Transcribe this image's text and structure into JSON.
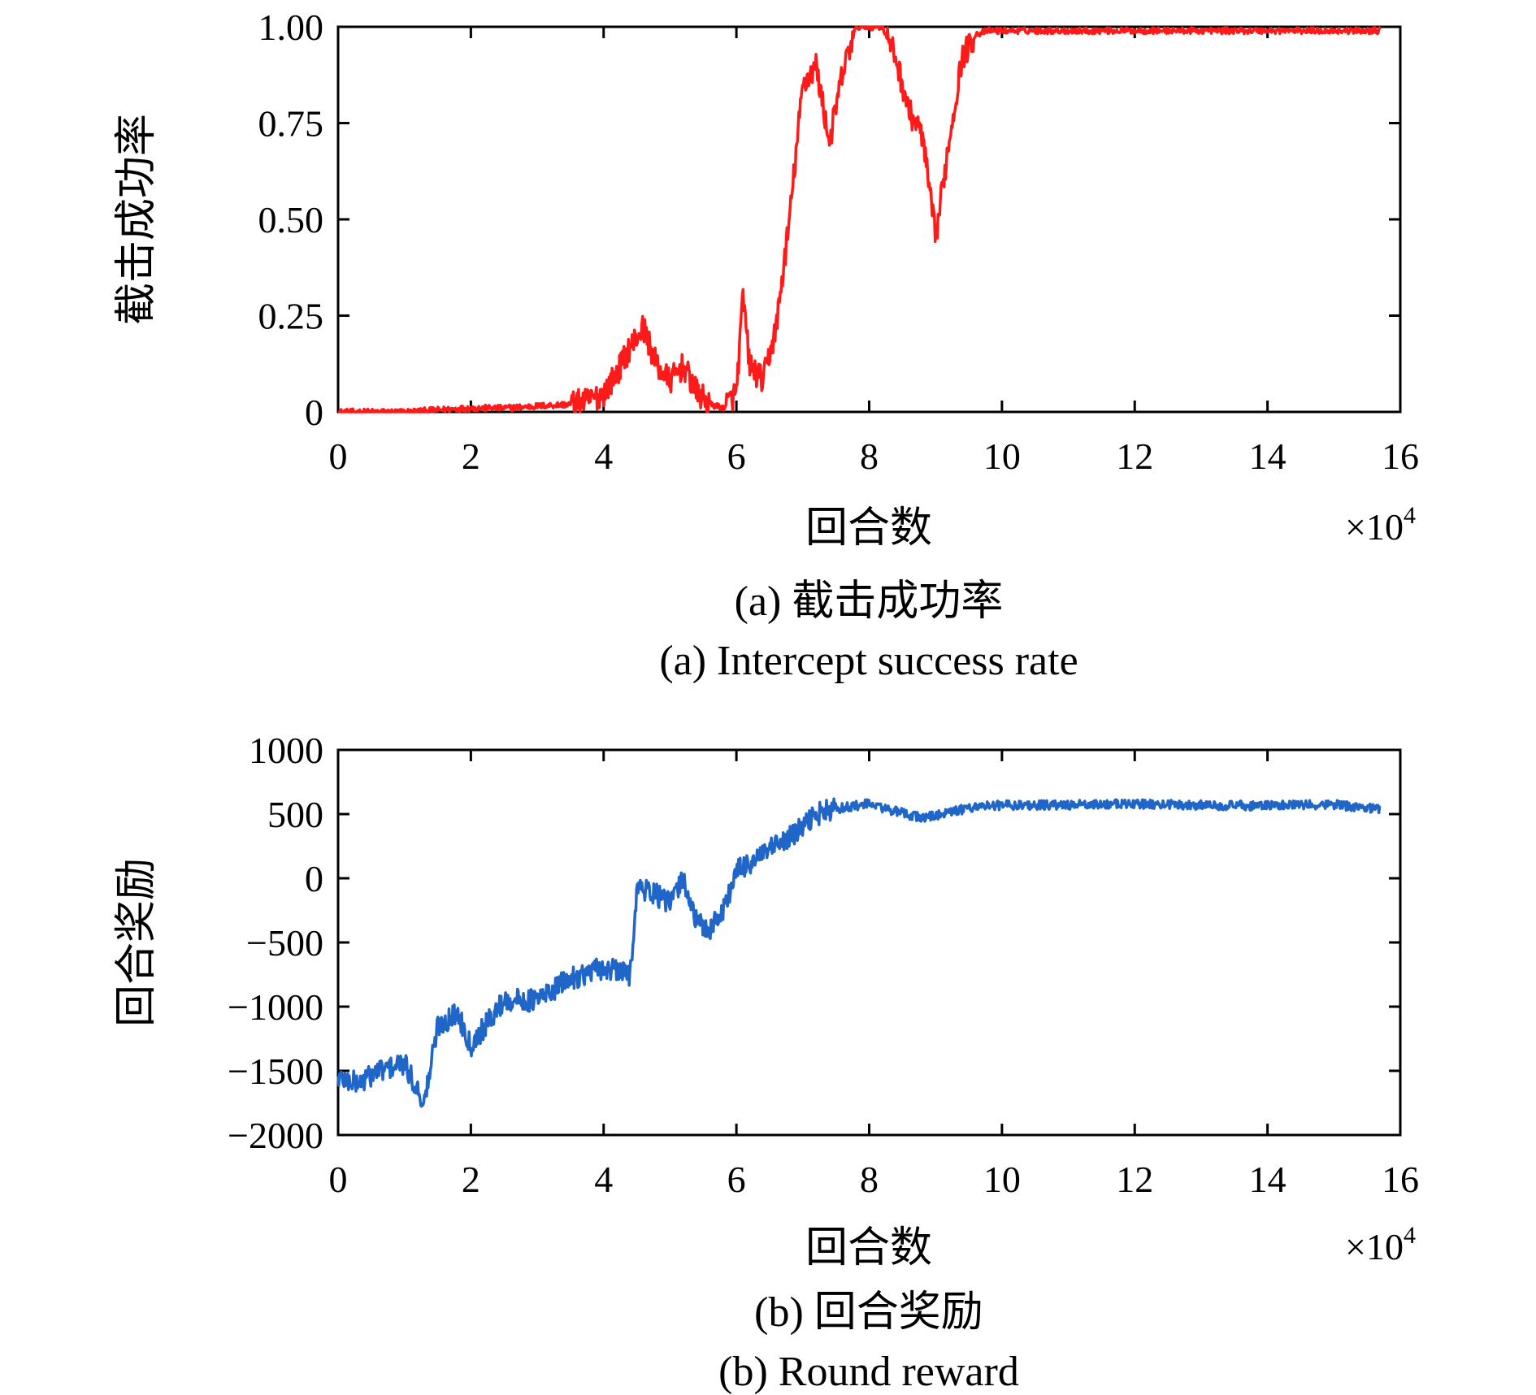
{
  "chart_data": [
    {
      "type": "line",
      "xlabel": "回合数",
      "ylabel": "截击成功率",
      "x_multiplier": "×10",
      "x_multiplier_exp": "4",
      "xlim": [
        0,
        16
      ],
      "ylim": [
        0,
        1
      ],
      "x_ticks": [
        0,
        2,
        4,
        6,
        8,
        10,
        12,
        14,
        16
      ],
      "x_tick_labels": [
        "0",
        "2",
        "4",
        "6",
        "8",
        "10",
        "12",
        "14",
        "16"
      ],
      "y_ticks": [
        0,
        0.25,
        0.5,
        0.75,
        1.0
      ],
      "y_tick_labels": [
        "0",
        "0.25",
        "0.50",
        "0.75",
        "1.00"
      ],
      "caption_cn": "(a) 截击成功率",
      "caption_en": "(a) Intercept success rate",
      "color": "#ff1a1a",
      "series": [
        {
          "x": [
            0,
            0.5,
            1.0,
            1.5,
            2.0,
            2.5,
            3.0,
            3.5,
            3.8,
            4.0,
            4.2,
            4.4,
            4.6,
            4.8,
            5.0,
            5.2,
            5.4,
            5.6,
            5.8,
            6.0,
            6.1,
            6.2,
            6.4,
            6.6,
            6.8,
            7.0,
            7.2,
            7.4,
            7.6,
            7.8,
            8.0,
            8.2,
            8.4,
            8.6,
            8.8,
            9.0,
            9.2,
            9.4,
            9.6,
            9.8,
            10.0,
            11,
            12,
            13,
            14,
            15,
            15.7
          ],
          "y": [
            0,
            0,
            0,
            0.005,
            0.01,
            0.01,
            0.015,
            0.02,
            0.03,
            0.05,
            0.1,
            0.17,
            0.22,
            0.12,
            0.08,
            0.12,
            0.05,
            0.02,
            0.01,
            0.05,
            0.3,
            0.12,
            0.08,
            0.22,
            0.5,
            0.85,
            0.9,
            0.7,
            0.88,
            1.0,
            1.0,
            1.0,
            0.92,
            0.78,
            0.72,
            0.45,
            0.7,
            0.92,
            0.98,
            0.99,
            0.99,
            0.99,
            0.99,
            0.99,
            0.99,
            0.99,
            0.99
          ]
        }
      ]
    },
    {
      "type": "line",
      "xlabel": "回合数",
      "ylabel": "回合奖励",
      "x_multiplier": "×10",
      "x_multiplier_exp": "4",
      "xlim": [
        0,
        16
      ],
      "ylim": [
        -2000,
        1000
      ],
      "x_ticks": [
        0,
        2,
        4,
        6,
        8,
        10,
        12,
        14,
        16
      ],
      "x_tick_labels": [
        "0",
        "2",
        "4",
        "6",
        "8",
        "10",
        "12",
        "14",
        "16"
      ],
      "y_ticks": [
        -2000,
        -1500,
        -1000,
        -500,
        0,
        500,
        1000
      ],
      "y_tick_labels": [
        "−2000",
        "−1500",
        "−1000",
        "−500",
        "0",
        "500",
        "1000"
      ],
      "caption_cn": "(b) 回合奖励",
      "caption_en": "(b) Round reward",
      "color": "#1f66c8",
      "series": [
        {
          "x": [
            0,
            0.3,
            0.6,
            1.0,
            1.3,
            1.5,
            1.8,
            2.0,
            2.5,
            3.0,
            3.5,
            4.0,
            4.4,
            4.5,
            4.7,
            5.0,
            5.2,
            5.4,
            5.6,
            5.8,
            6.0,
            6.3,
            6.6,
            6.9,
            7.2,
            7.6,
            8.0,
            8.4,
            8.8,
            9.2,
            9.6,
            10.0,
            11,
            12,
            13,
            14,
            15,
            15.7
          ],
          "y": [
            -1550,
            -1600,
            -1500,
            -1450,
            -1750,
            -1150,
            -1050,
            -1300,
            -950,
            -950,
            -780,
            -700,
            -750,
            -80,
            -100,
            -200,
            0,
            -350,
            -400,
            -250,
            50,
            150,
            250,
            350,
            500,
            550,
            580,
            520,
            470,
            510,
            560,
            570,
            570,
            580,
            570,
            565,
            575,
            540
          ]
        }
      ]
    }
  ]
}
